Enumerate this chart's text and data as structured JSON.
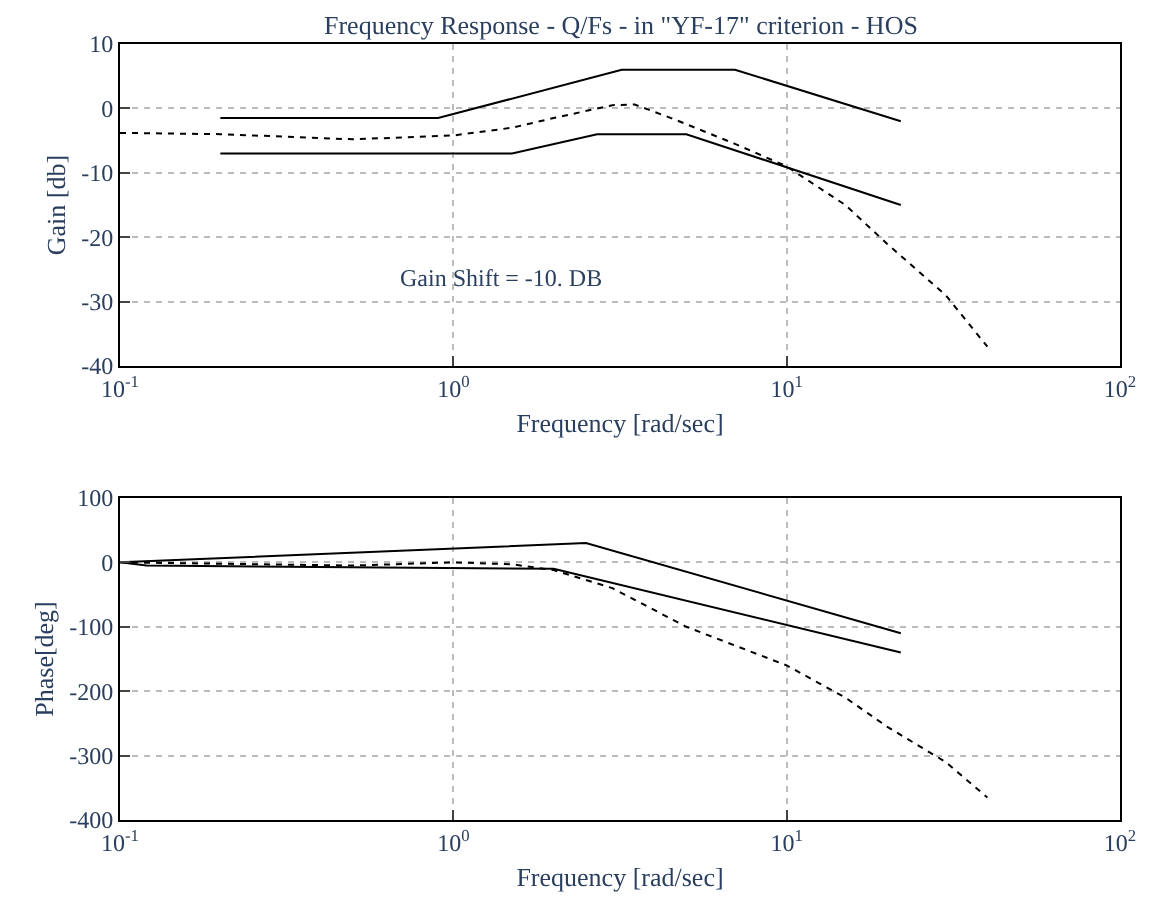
{
  "chart_data": [
    {
      "type": "line",
      "title": "Frequency Response - Q/Fs - in \"YF-17\" criterion - HOS",
      "xlabel": "Frequency [rad/sec]",
      "ylabel": "Gain [db]",
      "log": "x",
      "grid": true,
      "xlim": [
        0.1,
        100
      ],
      "xticks": [
        {
          "value": 0.1,
          "label": "10$^{-1}$"
        },
        {
          "value": 1,
          "label": "10$^{0}$"
        },
        {
          "value": 10,
          "label": "10$^{1}$"
        },
        {
          "value": 100,
          "label": "10$^{2}$"
        }
      ],
      "ylim": [
        -40,
        10
      ],
      "yticks": [
        -40,
        -30,
        -20,
        -10,
        0,
        10
      ],
      "annotations": [
        "Gain Shift = -10. DB"
      ],
      "series": [
        {
          "color": "#000000",
          "line_style": "solid",
          "x": [
            0.2,
            0.9,
            3.2,
            7,
            22
          ],
          "values": [
            -1.5,
            -1.5,
            6,
            6,
            -2
          ]
        },
        {
          "color": "#000000",
          "line_style": "solid",
          "x": [
            0.2,
            1.5,
            2.7,
            5,
            22
          ],
          "values": [
            -7,
            -7,
            -4,
            -4,
            -15
          ]
        },
        {
          "color": "#000000",
          "line_style": "dotted",
          "x": [
            0.1,
            0.2,
            0.5,
            1,
            1.5,
            2,
            3,
            3.5,
            4.5,
            7,
            10,
            15,
            20,
            30,
            40
          ],
          "values": [
            -3.8,
            -4,
            -4.8,
            -4.2,
            -3,
            -1.5,
            0.5,
            0.6,
            -1.5,
            -5.5,
            -9,
            -15,
            -21,
            -29,
            -37
          ]
        }
      ]
    },
    {
      "type": "line",
      "xlabel": "Frequency [rad/sec]",
      "ylabel": "Phase[deg]",
      "log": "x",
      "grid": true,
      "xlim": [
        0.1,
        100
      ],
      "xticks": [
        {
          "value": 0.1,
          "label": "10$^{-1}$"
        },
        {
          "value": 1,
          "label": "10$^{0}$"
        },
        {
          "value": 10,
          "label": "10$^{1}$"
        },
        {
          "value": 100,
          "label": "10$^{2}$"
        }
      ],
      "ylim": [
        -400,
        100
      ],
      "yticks": [
        -400,
        -300,
        -200,
        -100,
        0,
        100
      ],
      "series": [
        {
          "color": "#000000",
          "line_style": "solid",
          "x": [
            0.1,
            2.5,
            22
          ],
          "values": [
            0,
            30,
            -110
          ]
        },
        {
          "color": "#000000",
          "line_style": "solid",
          "x": [
            0.1,
            0.12,
            2,
            22
          ],
          "values": [
            0,
            -5,
            -10,
            -140
          ]
        },
        {
          "color": "#000000",
          "line_style": "dotted",
          "x": [
            0.1,
            0.5,
            1,
            1.5,
            2,
            3,
            5,
            10,
            15,
            20,
            30,
            40
          ],
          "values": [
            0,
            -5,
            0,
            -3,
            -12,
            -40,
            -100,
            -160,
            -210,
            -255,
            -310,
            -365
          ]
        }
      ]
    }
  ]
}
